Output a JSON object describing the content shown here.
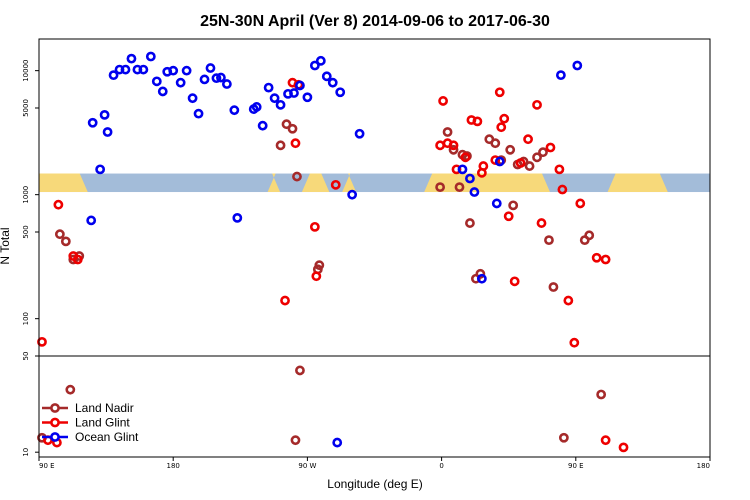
{
  "chart_data": {
    "type": "scatter",
    "title": "25N-30N April (Ver 8)   2014-09-06 to 2017-06-30",
    "xlabel": "Longitude (deg E)",
    "ylabel": "N Total",
    "x_ticks": [
      {
        "value": 90,
        "label": "90 E"
      },
      {
        "value": 180,
        "label": "180"
      },
      {
        "value": 270,
        "label": "90 W"
      },
      {
        "value": 360,
        "label": "0"
      },
      {
        "value": 450,
        "label": "90 E"
      },
      {
        "value": 540,
        "label": "180"
      }
    ],
    "xlim": [
      90,
      540
    ],
    "upper_panel": {
      "scale": "log",
      "ylim": [
        50,
        18000
      ],
      "y_ticks": [
        {
          "value": 50,
          "label": "50"
        },
        {
          "value": 100,
          "label": "100"
        },
        {
          "value": 500,
          "label": "500"
        },
        {
          "value": 1000,
          "label": "1000"
        },
        {
          "value": 5000,
          "label": "5000"
        },
        {
          "value": 10000,
          "label": "10000"
        }
      ]
    },
    "lower_panel": {
      "scale": "linear",
      "ylim": [
        8,
        50
      ],
      "y_ticks": [
        {
          "value": 10,
          "label": "10"
        },
        {
          "value": 50,
          "label": "50"
        }
      ]
    },
    "band": {
      "y_low": 1050,
      "y_high": 1480,
      "colors": {
        "ocean": "#a3bcd9",
        "land": "#f7d97a"
      },
      "land_ranges": [
        [
          90,
          120
        ],
        [
          246,
          249
        ],
        [
          269,
          282
        ],
        [
          296,
          300
        ],
        [
          351,
          430
        ],
        [
          474,
          509
        ]
      ]
    },
    "legend": {
      "position": "bottom-left"
    },
    "series": [
      {
        "name": "Land Nadir",
        "color": "#a52a2a",
        "points": [
          [
            92,
            16
          ],
          [
            104,
            480
          ],
          [
            108,
            420
          ],
          [
            117,
            320
          ],
          [
            113,
            300
          ],
          [
            111,
            36
          ],
          [
            252,
            2500
          ],
          [
            256,
            3700
          ],
          [
            260,
            3400
          ],
          [
            263,
            1400
          ],
          [
            278,
            270
          ],
          [
            277,
            250
          ],
          [
            265,
            44
          ],
          [
            262,
            15
          ],
          [
            359,
            1150
          ],
          [
            364,
            3200
          ],
          [
            368,
            2300
          ],
          [
            372,
            1150
          ],
          [
            374,
            2100
          ],
          [
            377,
            2050
          ],
          [
            379,
            590
          ],
          [
            383,
            210
          ],
          [
            386,
            230
          ],
          [
            392,
            2800
          ],
          [
            396,
            2600
          ],
          [
            400,
            1900
          ],
          [
            406,
            2300
          ],
          [
            408,
            820
          ],
          [
            411,
            1750
          ],
          [
            415,
            1850
          ],
          [
            419,
            1700
          ],
          [
            424,
            2000
          ],
          [
            428,
            2200
          ],
          [
            432,
            430
          ],
          [
            435,
            180
          ],
          [
            442,
            16
          ],
          [
            456,
            430
          ],
          [
            459,
            470
          ],
          [
            467,
            34
          ]
        ]
      },
      {
        "name": "Land Glint",
        "color": "#ee0000",
        "points": [
          [
            92,
            65
          ],
          [
            103,
            830
          ],
          [
            113,
            320
          ],
          [
            116,
            300
          ],
          [
            96,
            15
          ],
          [
            102,
            14
          ],
          [
            260,
            8000
          ],
          [
            264,
            7700
          ],
          [
            262,
            2600
          ],
          [
            255,
            140
          ],
          [
            275,
            550
          ],
          [
            276,
            220
          ],
          [
            289,
            1200
          ],
          [
            359,
            2500
          ],
          [
            361,
            5700
          ],
          [
            364,
            2600
          ],
          [
            368,
            2500
          ],
          [
            370,
            1600
          ],
          [
            376,
            2000
          ],
          [
            380,
            4000
          ],
          [
            384,
            3900
          ],
          [
            387,
            1500
          ],
          [
            388,
            1700
          ],
          [
            399,
            6700
          ],
          [
            400,
            3500
          ],
          [
            402,
            4100
          ],
          [
            396,
            1900
          ],
          [
            405,
            670
          ],
          [
            409,
            200
          ],
          [
            413,
            1800
          ],
          [
            418,
            2800
          ],
          [
            424,
            5300
          ],
          [
            427,
            590
          ],
          [
            433,
            2400
          ],
          [
            439,
            1600
          ],
          [
            441,
            1100
          ],
          [
            445,
            140
          ],
          [
            449,
            64
          ],
          [
            453,
            850
          ],
          [
            464,
            310
          ],
          [
            470,
            300
          ],
          [
            470,
            15
          ],
          [
            482,
            12
          ]
        ]
      },
      {
        "name": "Ocean Glint",
        "color": "#0000ee",
        "points": [
          [
            125,
            620
          ],
          [
            126,
            3800
          ],
          [
            131,
            1600
          ],
          [
            134,
            4400
          ],
          [
            136,
            3200
          ],
          [
            140,
            9200
          ],
          [
            144,
            10200
          ],
          [
            148,
            10200
          ],
          [
            152,
            12500
          ],
          [
            156,
            10200
          ],
          [
            160,
            10200
          ],
          [
            165,
            13000
          ],
          [
            169,
            8200
          ],
          [
            173,
            6800
          ],
          [
            176,
            9800
          ],
          [
            180,
            10000
          ],
          [
            185,
            8000
          ],
          [
            189,
            10000
          ],
          [
            193,
            6000
          ],
          [
            197,
            4500
          ],
          [
            201,
            8500
          ],
          [
            205,
            10500
          ],
          [
            209,
            8700
          ],
          [
            212,
            8800
          ],
          [
            216,
            7800
          ],
          [
            221,
            4800
          ],
          [
            223,
            650
          ],
          [
            234,
            4900
          ],
          [
            236,
            5100
          ],
          [
            240,
            3600
          ],
          [
            244,
            7300
          ],
          [
            248,
            6000
          ],
          [
            252,
            5300
          ],
          [
            257,
            6500
          ],
          [
            261,
            6600
          ],
          [
            265,
            7600
          ],
          [
            270,
            6100
          ],
          [
            275,
            11000
          ],
          [
            279,
            12000
          ],
          [
            283,
            9000
          ],
          [
            287,
            8000
          ],
          [
            290,
            14
          ],
          [
            292,
            6700
          ],
          [
            300,
            1000
          ],
          [
            305,
            3100
          ],
          [
            374,
            1600
          ],
          [
            379,
            1350
          ],
          [
            382,
            1050
          ],
          [
            387,
            210
          ],
          [
            397,
            850
          ],
          [
            399,
            1850
          ],
          [
            440,
            9200
          ],
          [
            451,
            11000
          ]
        ]
      }
    ]
  }
}
